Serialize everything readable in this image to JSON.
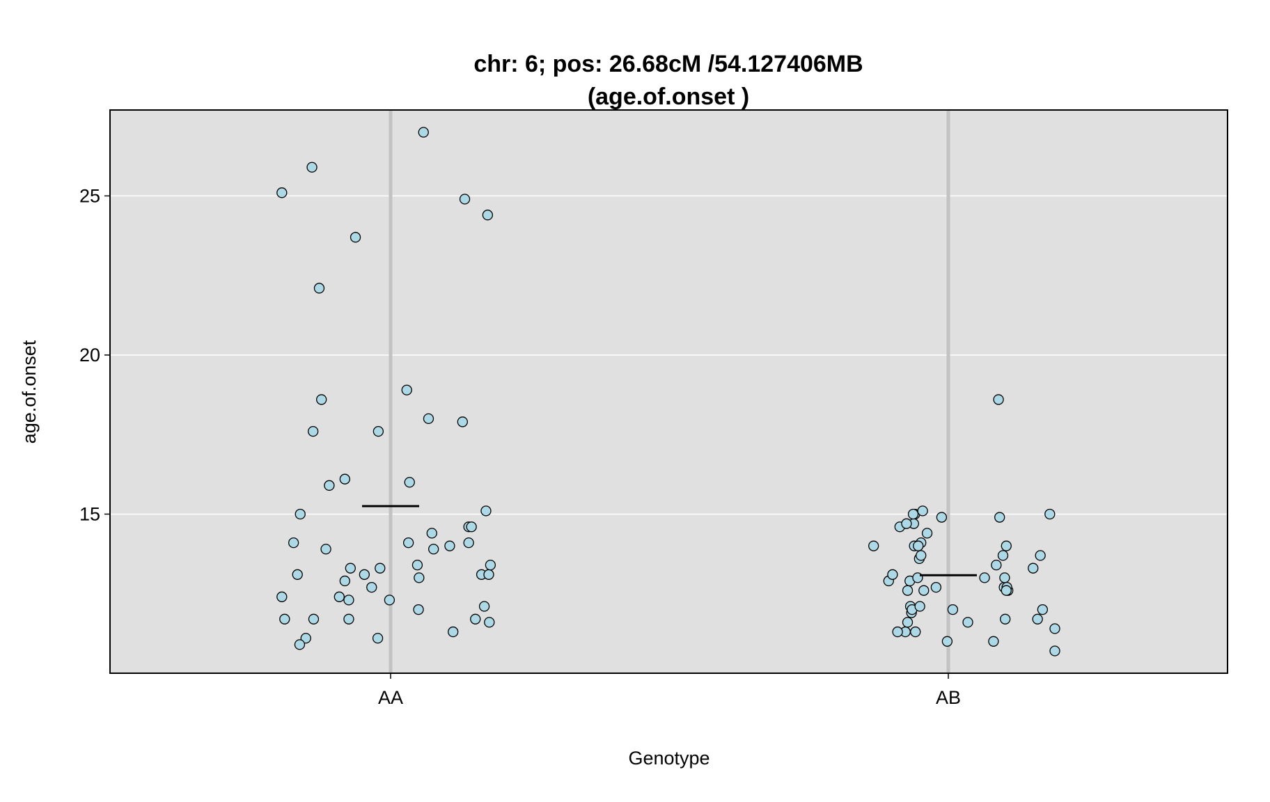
{
  "chart_data": {
    "type": "scatter",
    "title_line1": "chr: 6; pos: 26.68cM /54.127406MB",
    "title_line2": "(age.of.onset )",
    "xlabel": "Genotype",
    "ylabel": "age.of.onset",
    "categories": [
      "AA",
      "AB"
    ],
    "ylim": [
      10.0,
      27.7
    ],
    "yticks": [
      15,
      20,
      25
    ],
    "grid": true,
    "colors": {
      "panel": "#e0e0e0",
      "gridline": "#ffffff",
      "category_line": "#c2c2c2",
      "point_fill": "#add8e6",
      "point_stroke": "#000000",
      "mean_line": "#000000"
    },
    "means": [
      15.25,
      13.08
    ],
    "series": [
      {
        "category": "AA",
        "points": [
          [
            -0.195,
            25.1
          ],
          [
            -0.141,
            25.9
          ],
          [
            0.059,
            27.0
          ],
          [
            0.133,
            24.9
          ],
          [
            0.174,
            24.4
          ],
          [
            -0.063,
            23.7
          ],
          [
            -0.128,
            22.1
          ],
          [
            0.029,
            18.9
          ],
          [
            -0.124,
            18.6
          ],
          [
            -0.139,
            17.6
          ],
          [
            -0.022,
            17.6
          ],
          [
            0.068,
            18.0
          ],
          [
            0.129,
            17.9
          ],
          [
            -0.082,
            16.1
          ],
          [
            -0.11,
            15.9
          ],
          [
            0.034,
            16.0
          ],
          [
            -0.162,
            15.0
          ],
          [
            0.171,
            15.1
          ],
          [
            0.14,
            14.6
          ],
          [
            0.145,
            14.6
          ],
          [
            -0.174,
            14.1
          ],
          [
            0.032,
            14.1
          ],
          [
            0.074,
            14.4
          ],
          [
            0.106,
            14.0
          ],
          [
            0.14,
            14.1
          ],
          [
            -0.116,
            13.9
          ],
          [
            0.077,
            13.9
          ],
          [
            -0.167,
            13.1
          ],
          [
            -0.072,
            13.3
          ],
          [
            -0.047,
            13.1
          ],
          [
            -0.019,
            13.3
          ],
          [
            0.048,
            13.4
          ],
          [
            0.051,
            13.0
          ],
          [
            0.163,
            13.1
          ],
          [
            0.176,
            13.1
          ],
          [
            0.179,
            13.4
          ],
          [
            -0.195,
            12.4
          ],
          [
            -0.092,
            12.4
          ],
          [
            -0.082,
            12.9
          ],
          [
            -0.075,
            12.3
          ],
          [
            -0.034,
            12.7
          ],
          [
            -0.002,
            12.3
          ],
          [
            -0.19,
            11.7
          ],
          [
            -0.138,
            11.7
          ],
          [
            -0.075,
            11.7
          ],
          [
            0.05,
            12.0
          ],
          [
            0.152,
            11.7
          ],
          [
            0.168,
            12.1
          ],
          [
            0.177,
            11.6
          ],
          [
            -0.152,
            11.1
          ],
          [
            -0.163,
            10.9
          ],
          [
            -0.023,
            11.1
          ],
          [
            0.112,
            11.3
          ]
        ]
      },
      {
        "category": "AB",
        "points": [
          [
            0.09,
            18.6
          ],
          [
            -0.06,
            15.0
          ],
          [
            -0.062,
            14.7
          ],
          [
            -0.134,
            14.0
          ],
          [
            -0.087,
            14.6
          ],
          [
            -0.038,
            14.4
          ],
          [
            -0.046,
            15.1
          ],
          [
            -0.061,
            14.0
          ],
          [
            -0.075,
            14.7
          ],
          [
            -0.063,
            15.0
          ],
          [
            -0.012,
            14.9
          ],
          [
            0.092,
            14.9
          ],
          [
            0.182,
            15.0
          ],
          [
            -0.052,
            13.6
          ],
          [
            -0.049,
            13.7
          ],
          [
            -0.049,
            14.1
          ],
          [
            -0.054,
            14.0
          ],
          [
            0.104,
            14.0
          ],
          [
            0.098,
            13.7
          ],
          [
            0.165,
            13.7
          ],
          [
            -0.107,
            12.9
          ],
          [
            -0.1,
            13.1
          ],
          [
            -0.073,
            12.6
          ],
          [
            -0.068,
            12.1
          ],
          [
            -0.069,
            12.9
          ],
          [
            -0.055,
            13.0
          ],
          [
            -0.044,
            12.6
          ],
          [
            -0.022,
            12.7
          ],
          [
            0.065,
            13.0
          ],
          [
            0.086,
            13.4
          ],
          [
            0.1,
            12.7
          ],
          [
            0.107,
            12.6
          ],
          [
            0.105,
            12.7
          ],
          [
            0.101,
            13.0
          ],
          [
            0.152,
            13.3
          ],
          [
            -0.073,
            11.6
          ],
          [
            -0.077,
            11.3
          ],
          [
            -0.066,
            11.9
          ],
          [
            -0.065,
            12.0
          ],
          [
            0.008,
            12.0
          ],
          [
            0.035,
            11.6
          ],
          [
            0.102,
            11.7
          ],
          [
            0.16,
            11.7
          ],
          [
            0.169,
            12.0
          ],
          [
            -0.091,
            11.3
          ],
          [
            -0.059,
            11.3
          ],
          [
            -0.002,
            11.0
          ],
          [
            0.081,
            11.0
          ],
          [
            0.191,
            11.4
          ],
          [
            0.191,
            10.7
          ],
          [
            0.104,
            12.6
          ],
          [
            -0.051,
            12.1
          ]
        ]
      }
    ]
  }
}
